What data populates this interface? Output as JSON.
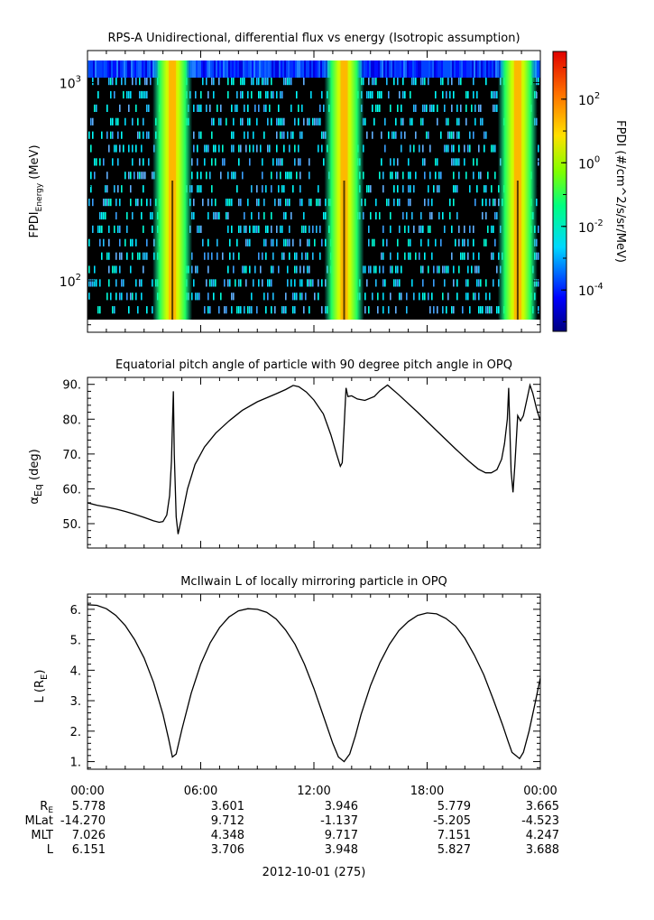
{
  "colors": {
    "axis": "#000000",
    "background": "#ffffff",
    "trace": "#000000"
  },
  "chart_data": [
    {
      "type": "heatmap",
      "title": "RPS-A Unidirectional, differential flux vs energy (Isotropic assumption)",
      "ylabel_main": "FPDI",
      "ylabel_sub": "Energy",
      "ylabel_unit": " (MeV)",
      "yscale": "log",
      "ylim": [
        55,
        1450
      ],
      "y_ticks": [
        {
          "value": 100,
          "base": "10",
          "exp": "2"
        },
        {
          "value": 1000,
          "base": "10",
          "exp": "3"
        }
      ],
      "x": [
        "00:00",
        "06:00",
        "12:00",
        "18:00",
        "00:00"
      ],
      "colorbar": {
        "label": "FPDI (#/cm^2/s/sr/MeV)",
        "scale": "log",
        "range": [
          -5.3,
          3.5
        ],
        "ticks": [
          {
            "value": -4,
            "base": "10",
            "exp": "-4"
          },
          {
            "value": -2,
            "base": "10",
            "exp": "-2"
          },
          {
            "value": 0,
            "base": "10",
            "exp": "0"
          },
          {
            "value": 2,
            "base": "10",
            "exp": "2"
          }
        ],
        "colormap": "rainbow (blue to red)"
      },
      "belt_crossing_hours": [
        4.5,
        13.6,
        22.8
      ],
      "min_color": "black"
    },
    {
      "type": "line",
      "title": "Equatorial pitch angle of particle with 90 degree pitch angle in OPQ",
      "ylabel": "α",
      "ylabel_sub": "Eq",
      "ylabel_unit": " (deg)",
      "ylim": [
        43,
        92
      ],
      "y_ticks": [
        "50.",
        "60.",
        "70.",
        "80.",
        "90."
      ],
      "series": [
        {
          "x": [
            0,
            0.5,
            1,
            1.5,
            2,
            2.5,
            3,
            3.5,
            3.8,
            4.0,
            4.2,
            4.35,
            4.45,
            4.5,
            4.55,
            4.6,
            4.7,
            4.8,
            5.0,
            5.3,
            5.7,
            6.2,
            6.8,
            7.5,
            8.2,
            9,
            10,
            10.5,
            10.9,
            11.2,
            11.6,
            12,
            12.5,
            12.9,
            13.2,
            13.4,
            13.5,
            13.6,
            13.7,
            13.8,
            14.0,
            14.3,
            14.7,
            15.2,
            15.5,
            15.9,
            16.5,
            17.5,
            18.5,
            19.5,
            20.2,
            20.7,
            21.1,
            21.4,
            21.7,
            21.95,
            22.1,
            22.25,
            22.32,
            22.38,
            22.45,
            22.55,
            22.65,
            22.8,
            22.95,
            23.1,
            23.3,
            23.45,
            23.6,
            23.8,
            24
          ],
          "y": [
            56,
            55.3,
            54.8,
            54.2,
            53.5,
            52.7,
            51.8,
            50.8,
            50.4,
            50.6,
            52.5,
            58,
            68,
            78,
            88,
            70,
            52,
            47,
            52,
            60,
            67,
            72,
            76,
            79.5,
            82.5,
            85,
            87.3,
            88.5,
            89.7,
            89.3,
            87.8,
            85.5,
            81.5,
            75.5,
            70,
            66.5,
            67.5,
            78,
            89,
            86.5,
            86.7,
            85.8,
            85.4,
            86.5,
            88.2,
            89.8,
            87,
            82,
            76.7,
            71.5,
            68,
            65.7,
            64.6,
            64.6,
            65.5,
            68.5,
            73,
            80,
            89,
            78,
            65,
            59,
            67,
            81,
            79.5,
            81,
            86,
            89.8,
            87.5,
            83,
            79.5
          ]
        }
      ]
    },
    {
      "type": "line",
      "title": "McIlwain L of locally mirroring particle in OPQ",
      "ylabel": "L (R",
      "ylabel_sub": "E",
      "ylabel_unit": ")",
      "ylim": [
        0.75,
        6.5
      ],
      "y_ticks": [
        "1.",
        "2.",
        "3.",
        "4.",
        "5.",
        "6."
      ],
      "series": [
        {
          "x": [
            0,
            0.5,
            1,
            1.5,
            2,
            2.5,
            3,
            3.5,
            4,
            4.3,
            4.5,
            4.7,
            5,
            5.5,
            6,
            6.5,
            7,
            7.5,
            8,
            8.5,
            9,
            9.5,
            10,
            10.5,
            11,
            11.5,
            12,
            12.5,
            13,
            13.3,
            13.6,
            13.9,
            14.2,
            14.5,
            15,
            15.5,
            16,
            16.5,
            17,
            17.5,
            18,
            18.5,
            19,
            19.5,
            20,
            20.5,
            21,
            21.5,
            22,
            22.3,
            22.5,
            22.7,
            22.9,
            23.1,
            23.4,
            23.7,
            24
          ],
          "y": [
            6.15,
            6.13,
            6.02,
            5.8,
            5.47,
            5.0,
            4.4,
            3.6,
            2.55,
            1.75,
            1.15,
            1.25,
            2.05,
            3.25,
            4.2,
            4.9,
            5.4,
            5.75,
            5.95,
            6.02,
            6.0,
            5.9,
            5.68,
            5.32,
            4.85,
            4.2,
            3.4,
            2.5,
            1.6,
            1.15,
            1.0,
            1.25,
            1.85,
            2.55,
            3.5,
            4.25,
            4.85,
            5.3,
            5.6,
            5.8,
            5.88,
            5.85,
            5.7,
            5.45,
            5.05,
            4.5,
            3.85,
            3.05,
            2.2,
            1.65,
            1.3,
            1.2,
            1.1,
            1.3,
            2.0,
            2.85,
            3.75
          ]
        }
      ]
    }
  ],
  "x_axis": {
    "tick_labels": [
      "00:00",
      "06:00",
      "12:00",
      "18:00",
      "00:00"
    ],
    "date_label": "2012-10-01 (275)"
  },
  "ephemeris": {
    "rows": [
      {
        "label": "R",
        "label_sub": "E",
        "values": [
          "5.778",
          "3.601",
          "3.946",
          "5.779",
          "3.665"
        ]
      },
      {
        "label": "MLat",
        "label_sub": "",
        "values": [
          "-14.270",
          "9.712",
          "-1.137",
          "-5.205",
          "-4.523"
        ]
      },
      {
        "label": "MLT",
        "label_sub": "",
        "values": [
          "7.026",
          "4.348",
          "9.717",
          "7.151",
          "4.247"
        ]
      },
      {
        "label": "L",
        "label_sub": "",
        "values": [
          "6.151",
          "3.706",
          "3.948",
          "5.827",
          "3.688"
        ]
      }
    ]
  }
}
